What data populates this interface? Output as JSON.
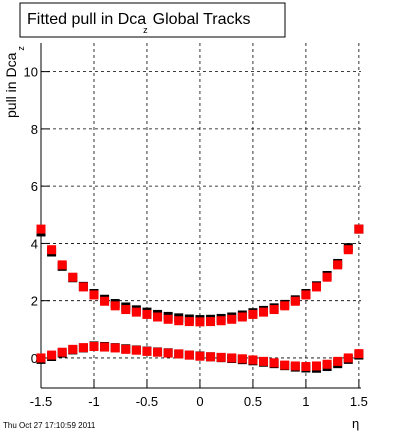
{
  "chart_data": {
    "type": "scatter",
    "title": {
      "text": "Fitted pull in Dca",
      "subscript": "z",
      "rest": "Global Tracks"
    },
    "y_label": {
      "text": "pull in Dca",
      "subscript": "z"
    },
    "x_label": "η",
    "timestamp": "Thu Oct 27 17:10:59 2011",
    "x": [
      -1.5,
      -1.4,
      -1.3,
      -1.2,
      -1.1,
      -1.0,
      -0.9,
      -0.8,
      -0.7,
      -0.6,
      -0.5,
      -0.4,
      -0.3,
      -0.2,
      -0.1,
      0,
      0.1,
      0.2,
      0.3,
      0.4,
      0.5,
      0.6,
      0.7,
      0.8,
      0.9,
      1.0,
      1.1,
      1.2,
      1.3,
      1.4,
      1.5
    ],
    "series": [
      {
        "color": "#000000",
        "values": [
          4.4,
          3.7,
          3.2,
          2.8,
          2.5,
          2.25,
          2.05,
          1.9,
          1.78,
          1.68,
          1.6,
          1.52,
          1.45,
          1.4,
          1.36,
          1.34,
          1.35,
          1.38,
          1.43,
          1.5,
          1.58,
          1.66,
          1.75,
          1.87,
          2.03,
          2.25,
          2.52,
          2.88,
          3.3,
          3.85,
          4.5
        ]
      },
      {
        "color": "#000000",
        "values": [
          -0.05,
          0.05,
          0.17,
          0.28,
          0.35,
          0.42,
          0.4,
          0.36,
          0.32,
          0.28,
          0.24,
          0.21,
          0.18,
          0.14,
          0.1,
          0.07,
          0.04,
          0.01,
          -0.02,
          -0.06,
          -0.1,
          -0.15,
          -0.2,
          -0.27,
          -0.32,
          -0.35,
          -0.36,
          -0.3,
          -0.2,
          -0.05,
          0.1
        ]
      },
      {
        "color": "#ff0000",
        "values": [
          4.5,
          3.78,
          3.25,
          2.82,
          2.48,
          2.2,
          1.98,
          1.82,
          1.69,
          1.6,
          1.52,
          1.43,
          1.35,
          1.3,
          1.27,
          1.26,
          1.27,
          1.3,
          1.35,
          1.43,
          1.52,
          1.6,
          1.69,
          1.82,
          1.98,
          2.2,
          2.48,
          2.82,
          3.25,
          3.78,
          4.5
        ]
      },
      {
        "color": "#ff0000",
        "values": [
          0.0,
          0.1,
          0.2,
          0.3,
          0.36,
          0.4,
          0.38,
          0.35,
          0.3,
          0.27,
          0.23,
          0.2,
          0.17,
          0.14,
          0.1,
          0.06,
          0.04,
          0.02,
          0.0,
          -0.03,
          -0.07,
          -0.12,
          -0.17,
          -0.25,
          -0.28,
          -0.3,
          -0.28,
          -0.22,
          -0.12,
          0.0,
          0.15
        ]
      }
    ],
    "xlim": [
      -1.5,
      1.52
    ],
    "ylim": [
      -1.05,
      11
    ],
    "xticks": [
      -1.5,
      -1,
      -0.5,
      0,
      0.5,
      1,
      1.5
    ],
    "yticks": [
      0,
      2,
      4,
      6,
      8,
      10
    ],
    "grid": true
  }
}
